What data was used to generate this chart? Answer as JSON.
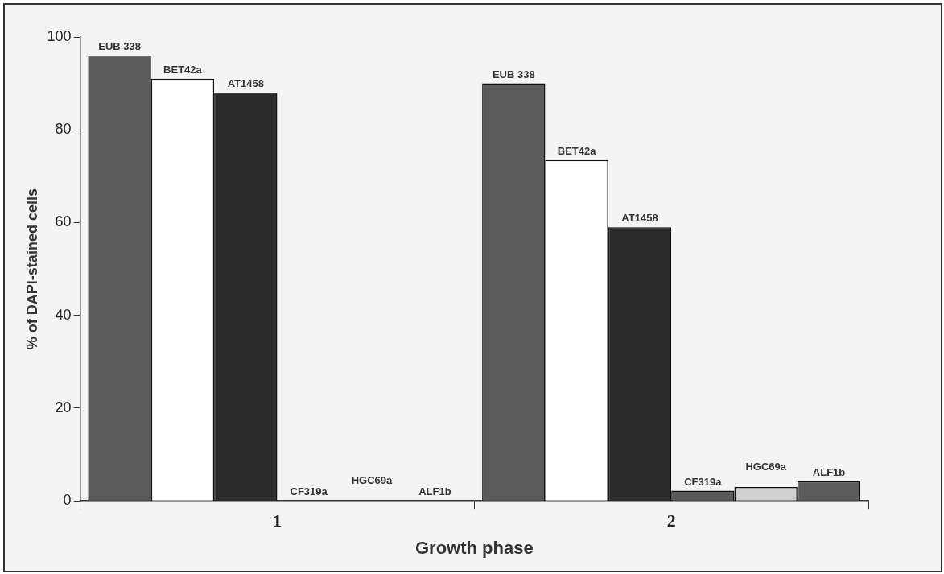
{
  "chart_data": {
    "type": "bar",
    "xlabel": "Growth phase",
    "ylabel": "% of DAPI-stained cells",
    "categories": [
      "1",
      "2"
    ],
    "series": [
      {
        "name": "EUB 338",
        "color": "#5a5a5a",
        "values": [
          96,
          90
        ]
      },
      {
        "name": "BET42a",
        "color": "#ffffff",
        "values": [
          91,
          73.5
        ]
      },
      {
        "name": "AT1458",
        "color": "#2a2a2a",
        "values": [
          88,
          59
        ]
      },
      {
        "name": "CF319a",
        "color": "#5a5a5a",
        "values": [
          0,
          2.2
        ]
      },
      {
        "name": "HGC69a",
        "color": "#d0d0d0",
        "values": [
          0,
          3
        ]
      },
      {
        "name": "ALF1b",
        "color": "#5a5a5a",
        "values": [
          0,
          4.2
        ]
      }
    ],
    "ylim": [
      0,
      100
    ],
    "yticks": [
      0,
      20,
      40,
      60,
      80,
      100
    ],
    "grid": false,
    "legend": false
  }
}
